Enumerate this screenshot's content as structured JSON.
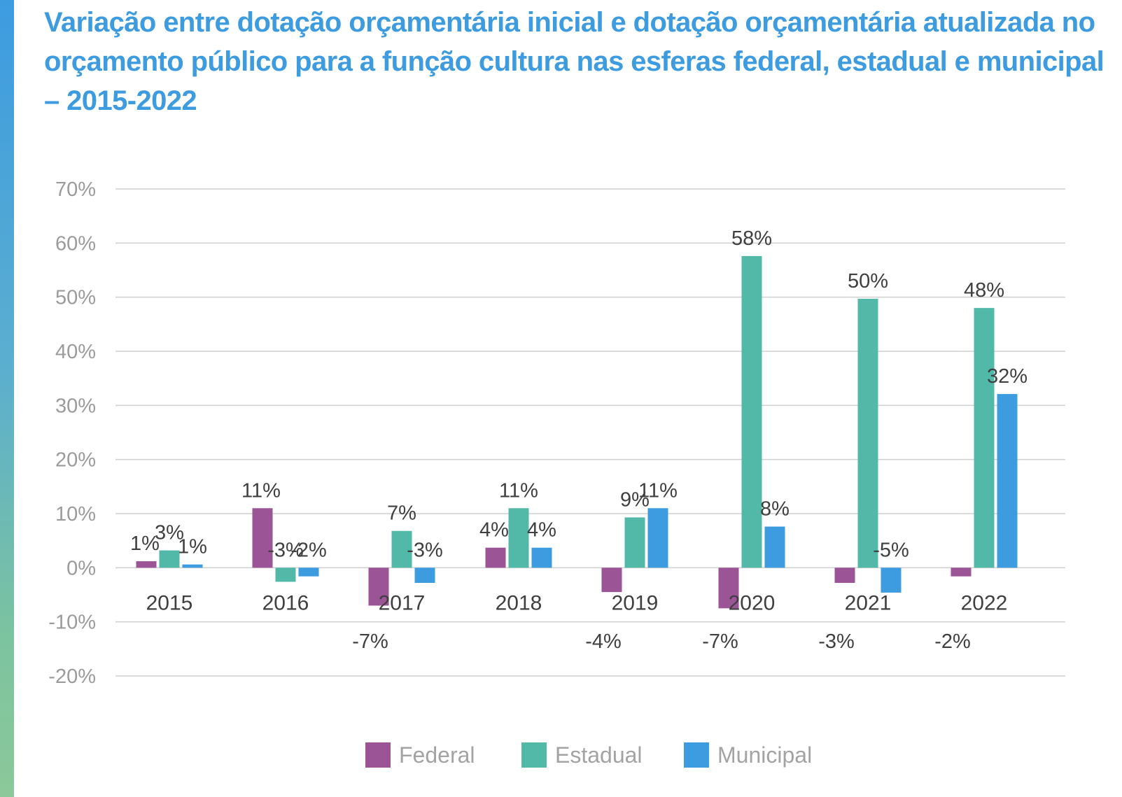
{
  "title": "Variação entre dotação orçamentária inicial e dotação orçamentária atualizada no orçamento público para a função cultura nas esferas federal, estadual e municipal – 2015-2022",
  "colors": {
    "federal": "#9b5597",
    "estadual": "#52b9a8",
    "municipal": "#3d9be0",
    "title": "#3d9be0",
    "grid": "#cfcfcf"
  },
  "chart_data": {
    "type": "bar",
    "categories": [
      "2015",
      "2016",
      "2017",
      "2018",
      "2019",
      "2020",
      "2021",
      "2022"
    ],
    "series": [
      {
        "name": "Federal",
        "values": [
          1.2,
          11.0,
          -7.0,
          3.7,
          -4.5,
          -7.5,
          -2.8,
          -1.6
        ],
        "labels": [
          "1%",
          "11%",
          "-7%",
          "4%",
          "-4%",
          "-7%",
          "-3%",
          "-2%"
        ]
      },
      {
        "name": "Estadual",
        "values": [
          3.2,
          -2.6,
          6.8,
          11.0,
          9.3,
          57.6,
          49.7,
          48.0
        ],
        "labels": [
          "3%",
          "-3%",
          "7%",
          "11%",
          "9%",
          "58%",
          "50%",
          "48%"
        ]
      },
      {
        "name": "Municipal",
        "values": [
          0.6,
          -1.6,
          -2.8,
          3.7,
          11.0,
          7.6,
          -4.6,
          32.1
        ],
        "labels": [
          "1%",
          "-2%",
          "-3%",
          "4%",
          "11%",
          "8%",
          "-5%",
          "32%"
        ]
      }
    ],
    "yticks": [
      "70%",
      "60%",
      "50%",
      "40%",
      "30%",
      "20%",
      "10%",
      "0%",
      "-10%",
      "-20%"
    ],
    "ylim": [
      -20,
      70
    ],
    "grid": true,
    "legend_position": "bottom"
  }
}
